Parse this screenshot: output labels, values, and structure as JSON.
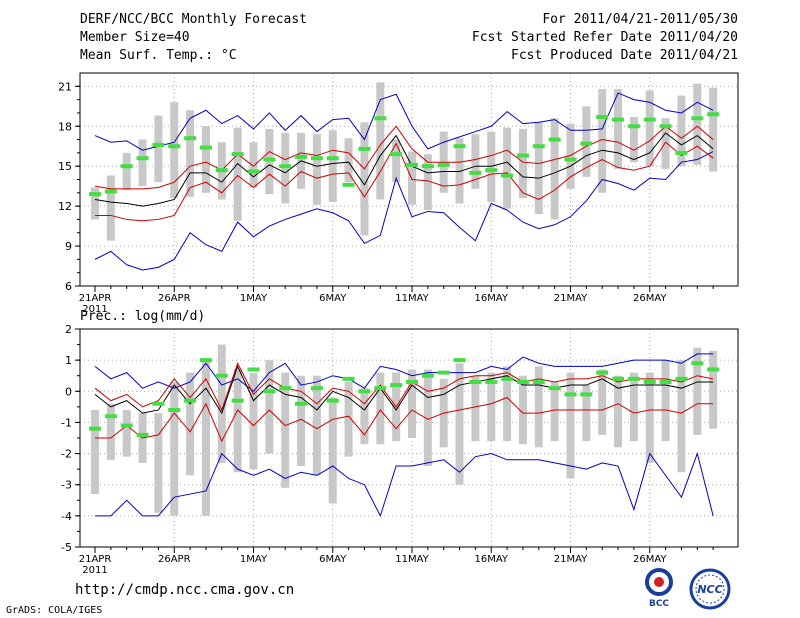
{
  "header": {
    "left": [
      "DERF/NCC/BCC Monthly Forecast",
      "Member Size=40",
      "Mean Surf. Temp.: °C"
    ],
    "right": [
      "For 2011/04/21-2011/05/30",
      "Fcst Started Refer Date 2011/04/20",
      "Fcst Produced Date 2011/04/21"
    ]
  },
  "footer": {
    "url": "http://cmdp.ncc.cma.gov.cn",
    "credit": "GrADS: COLA/IGES",
    "logo1": "BCC",
    "logo2": "NCC"
  },
  "colors": {
    "box": "#c8c8c8",
    "median": "#44dd44",
    "max_min": "#0000cc",
    "spread": "#cc0000",
    "mean": "#000000",
    "dotted_grid": "#aaaaaa"
  },
  "chart_data": [
    {
      "type": "line",
      "title": "Mean Surf. Temp.: °C",
      "ylim": [
        6,
        22
      ],
      "yticks": [
        6,
        9,
        12,
        15,
        18,
        21
      ],
      "xlabels": [
        "21APR",
        "26APR",
        "1MAY",
        "6MAY",
        "11MAY",
        "16MAY",
        "21MAY",
        "26MAY"
      ],
      "year_label": "2011",
      "days": 40,
      "grid": "dotted",
      "series": [
        {
          "name": "max",
          "values": [
            17.3,
            16.8,
            16.9,
            16.2,
            16.5,
            16.8,
            18.6,
            19.2,
            18.2,
            18.8,
            17.8,
            19.0,
            17.7,
            18.8,
            17.6,
            18.5,
            18.6,
            17.0,
            20.0,
            20.4,
            18.0,
            16.3,
            16.8,
            17.2,
            17.6,
            18.0,
            19.1,
            18.2,
            18.3,
            18.5,
            17.7,
            17.7,
            17.8,
            20.5,
            20.0,
            19.8,
            19.2,
            19.0,
            19.8,
            19.2
          ]
        },
        {
          "name": "spread_upper",
          "values": [
            13.5,
            13.3,
            13.3,
            13.3,
            13.4,
            13.8,
            15.0,
            15.3,
            14.7,
            15.9,
            15.0,
            16.1,
            15.5,
            16.0,
            15.8,
            16.2,
            16.0,
            14.8,
            16.6,
            18.0,
            16.3,
            15.3,
            15.3,
            15.3,
            15.5,
            15.8,
            16.2,
            15.3,
            15.2,
            15.5,
            15.8,
            16.5,
            17.0,
            16.8,
            16.2,
            16.9,
            18.0,
            17.1,
            18.0,
            17.0
          ]
        },
        {
          "name": "mean",
          "values": [
            12.5,
            12.3,
            12.2,
            12.0,
            12.2,
            12.5,
            14.5,
            14.5,
            13.8,
            15.2,
            14.2,
            15.1,
            14.5,
            15.4,
            15.0,
            15.2,
            15.3,
            13.6,
            15.8,
            17.3,
            15.0,
            14.5,
            14.6,
            14.6,
            15.0,
            15.0,
            15.3,
            14.2,
            14.1,
            14.5,
            15.0,
            15.8,
            16.2,
            16.0,
            15.5,
            16.0,
            17.5,
            16.6,
            17.3,
            16.3
          ]
        },
        {
          "name": "spread_lower",
          "values": [
            11.3,
            11.3,
            11.0,
            10.9,
            11.0,
            11.3,
            13.4,
            13.8,
            13.0,
            14.3,
            13.4,
            14.4,
            13.5,
            14.6,
            14.1,
            14.4,
            14.5,
            12.7,
            14.6,
            16.7,
            14.0,
            13.9,
            13.5,
            13.6,
            14.0,
            14.4,
            14.5,
            13.0,
            12.5,
            13.2,
            14.2,
            14.9,
            15.5,
            14.9,
            14.7,
            15.0,
            16.8,
            15.8,
            16.5,
            15.6
          ]
        },
        {
          "name": "min",
          "values": [
            8.0,
            8.6,
            7.6,
            7.2,
            7.4,
            8.0,
            10.0,
            9.1,
            8.6,
            10.8,
            9.7,
            10.5,
            11.0,
            11.4,
            11.8,
            11.5,
            10.9,
            9.2,
            9.8,
            14.1,
            11.2,
            11.6,
            11.5,
            10.4,
            9.4,
            12.2,
            11.7,
            10.8,
            10.3,
            10.6,
            11.2,
            12.4,
            14.0,
            13.7,
            13.2,
            14.1,
            14.0,
            15.3,
            15.5,
            16.1
          ]
        },
        {
          "name": "median",
          "values": [
            12.9,
            13.1,
            15.0,
            15.6,
            16.6,
            16.5,
            17.1,
            16.4,
            14.7,
            15.9,
            14.6,
            15.5,
            15.0,
            15.7,
            15.6,
            15.6,
            13.6,
            16.3,
            18.6,
            15.9,
            15.1,
            15.0,
            15.1,
            16.5,
            14.5,
            14.7,
            14.3,
            15.8,
            16.5,
            17.0,
            15.5,
            16.7,
            18.7,
            18.5,
            18.0,
            18.5,
            18.0,
            16.0,
            18.6,
            18.9
          ]
        },
        {
          "name": "box_low",
          "values": [
            11.0,
            9.4,
            13.2,
            13.5,
            13.8,
            12.6,
            12.7,
            13.0,
            12.5,
            10.9,
            13.4,
            12.9,
            12.2,
            13.3,
            12.1,
            12.3,
            13.8,
            9.8,
            12.5,
            13.8,
            12.1,
            11.7,
            13.0,
            12.2,
            13.3,
            12.3,
            11.8,
            12.6,
            11.4,
            11.0,
            13.3,
            14.2,
            13.0,
            14.8,
            15.3,
            15.0,
            14.8,
            15.0,
            15.1,
            14.6
          ]
        },
        {
          "name": "box_high",
          "values": [
            13.4,
            14.3,
            16.0,
            17.0,
            18.8,
            19.8,
            19.2,
            18.0,
            16.8,
            17.9,
            16.8,
            17.8,
            17.5,
            17.5,
            17.4,
            17.7,
            17.1,
            18.3,
            21.3,
            17.0,
            16.1,
            15.9,
            17.6,
            17.1,
            17.4,
            17.6,
            17.9,
            17.8,
            18.3,
            18.6,
            18.2,
            19.5,
            20.8,
            20.8,
            18.7,
            20.7,
            18.6,
            20.3,
            21.2,
            20.9
          ]
        }
      ]
    },
    {
      "type": "line",
      "title": "Prec.: log(mm/d)",
      "ylim": [
        -5,
        2
      ],
      "yticks": [
        -5,
        -4,
        -3,
        -2,
        -1,
        0,
        1,
        2
      ],
      "xlabels": [
        "21APR",
        "26APR",
        "1MAY",
        "6MAY",
        "11MAY",
        "16MAY",
        "21MAY",
        "26MAY"
      ],
      "year_label": "2011",
      "days": 40,
      "grid": "dotted",
      "series": [
        {
          "name": "max",
          "values": [
            0.8,
            0.4,
            0.6,
            0.1,
            0.3,
            0.1,
            0.3,
            0.9,
            0.2,
            0.4,
            0.0,
            0.6,
            0.9,
            0.2,
            0.3,
            0.5,
            0.4,
            0.1,
            0.8,
            0.7,
            0.5,
            0.6,
            0.6,
            0.6,
            0.6,
            0.8,
            0.7,
            1.1,
            0.9,
            0.8,
            0.8,
            0.8,
            0.8,
            0.9,
            1.0,
            1.0,
            1.0,
            0.9,
            1.2,
            1.2
          ]
        },
        {
          "name": "spread_upper",
          "values": [
            0.1,
            -0.3,
            -0.1,
            -0.5,
            -0.3,
            0.4,
            -0.2,
            0.4,
            -0.6,
            0.9,
            -0.1,
            0.4,
            0.1,
            0.0,
            -0.4,
            0.1,
            0.0,
            -0.4,
            0.2,
            -0.5,
            0.3,
            0.0,
            0.1,
            0.4,
            0.5,
            0.5,
            0.6,
            0.3,
            0.4,
            0.3,
            0.4,
            0.4,
            0.5,
            0.3,
            0.4,
            0.4,
            0.4,
            0.3,
            0.5,
            0.4
          ]
        },
        {
          "name": "mean",
          "values": [
            -0.1,
            -0.5,
            -0.3,
            -0.7,
            -0.6,
            0.2,
            -0.4,
            0.1,
            -0.7,
            0.8,
            -0.3,
            0.2,
            -0.1,
            -0.2,
            -0.6,
            0.0,
            -0.2,
            -0.6,
            0.1,
            -0.6,
            0.2,
            -0.2,
            -0.1,
            0.2,
            0.3,
            0.4,
            0.5,
            0.2,
            0.2,
            0.1,
            0.2,
            0.2,
            0.4,
            0.1,
            0.2,
            0.2,
            0.2,
            0.1,
            0.3,
            0.3
          ]
        },
        {
          "name": "spread_lower",
          "values": [
            -1.5,
            -1.5,
            -1.1,
            -1.5,
            -1.4,
            -0.7,
            -1.3,
            -0.4,
            -1.6,
            -0.6,
            -1.1,
            -0.6,
            -1.1,
            -0.9,
            -1.2,
            -0.9,
            -0.8,
            -1.4,
            -0.6,
            -1.2,
            -0.6,
            -0.9,
            -0.7,
            -0.6,
            -0.5,
            -0.4,
            -0.2,
            -0.7,
            -0.7,
            -0.6,
            -0.6,
            -0.6,
            -0.6,
            -0.4,
            -0.7,
            -0.6,
            -0.6,
            -0.7,
            -0.4,
            -0.4
          ]
        },
        {
          "name": "min",
          "values": [
            -4.0,
            -4.0,
            -3.5,
            -4.0,
            -4.0,
            -3.4,
            -3.3,
            -3.2,
            -2.0,
            -2.5,
            -2.7,
            -2.5,
            -2.8,
            -2.6,
            -2.7,
            -2.4,
            -2.8,
            -3.0,
            -4.0,
            -2.4,
            -2.4,
            -2.3,
            -2.2,
            -2.6,
            -2.1,
            -2.0,
            -2.2,
            -2.2,
            -2.2,
            -2.3,
            -2.4,
            -2.5,
            -2.3,
            -2.4,
            -3.8,
            -2.0,
            -2.7,
            -3.4,
            -2.0,
            -4.0
          ]
        },
        {
          "name": "median",
          "values": [
            -1.2,
            -0.8,
            -1.1,
            -1.4,
            -0.4,
            -0.6,
            -0.3,
            1.0,
            0.5,
            -0.3,
            0.7,
            0.0,
            0.1,
            -0.4,
            0.1,
            -0.3,
            0.4,
            0.0,
            0.1,
            0.2,
            0.3,
            0.5,
            0.6,
            1.0,
            0.3,
            0.3,
            0.4,
            0.3,
            0.3,
            0.1,
            -0.1,
            -0.1,
            0.6,
            0.4,
            0.4,
            0.3,
            0.3,
            0.4,
            0.9,
            0.7
          ]
        },
        {
          "name": "box_low",
          "values": [
            -3.3,
            -2.2,
            -2.1,
            -2.3,
            -3.9,
            -4.0,
            -2.7,
            -4.0,
            -2.3,
            -2.6,
            -2.5,
            -2.0,
            -3.1,
            -2.4,
            -2.7,
            -3.6,
            -2.1,
            -1.7,
            -1.7,
            -1.6,
            -1.5,
            -2.4,
            -1.8,
            -3.0,
            -1.6,
            -1.6,
            -1.6,
            -1.7,
            -1.8,
            -1.6,
            -2.8,
            -1.6,
            -1.4,
            -1.8,
            -1.6,
            -2.3,
            -1.6,
            -2.6,
            -1.4,
            -1.2
          ]
        },
        {
          "name": "box_high",
          "values": [
            -0.6,
            -0.4,
            -0.6,
            -0.7,
            -0.7,
            0.3,
            0.6,
            1.0,
            1.5,
            0.7,
            0.6,
            1.0,
            0.6,
            0.5,
            0.5,
            -0.2,
            0.3,
            0.1,
            0.6,
            0.6,
            0.7,
            0.7,
            0.4,
            0.9,
            0.5,
            0.6,
            0.8,
            0.5,
            0.8,
            0.3,
            0.6,
            0.2,
            0.7,
            0.5,
            0.6,
            0.6,
            1.0,
            1.0,
            1.4,
            1.3
          ]
        }
      ]
    }
  ]
}
